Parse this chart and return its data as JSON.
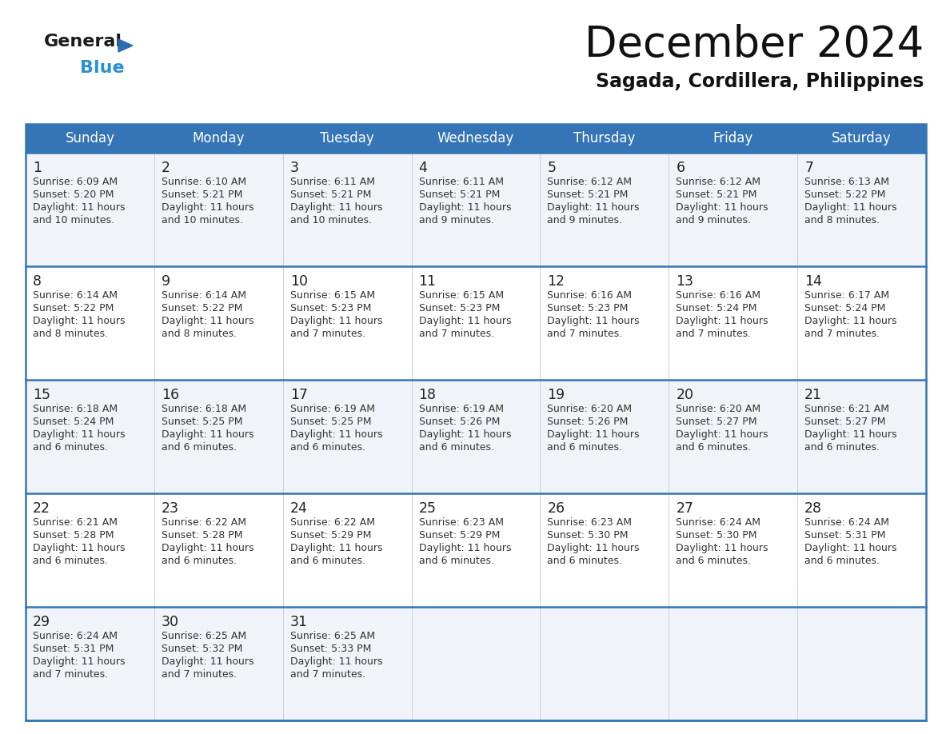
{
  "title": "December 2024",
  "subtitle": "Sagada, Cordillera, Philippines",
  "days_of_week": [
    "Sunday",
    "Monday",
    "Tuesday",
    "Wednesday",
    "Thursday",
    "Friday",
    "Saturday"
  ],
  "header_bg_color": "#3575b5",
  "header_text_color": "#ffffff",
  "row_bg_colors": [
    "#f0f4f8",
    "#ffffff"
  ],
  "row_separator_color": "#3575b5",
  "title_color": "#111111",
  "subtitle_color": "#111111",
  "day_num_color": "#222222",
  "cell_text_color": "#333333",
  "calendar_data": [
    [
      {
        "day": 1,
        "sunrise": "6:09 AM",
        "sunset": "5:20 PM",
        "daylight": "11 hours and 10 minutes."
      },
      {
        "day": 2,
        "sunrise": "6:10 AM",
        "sunset": "5:21 PM",
        "daylight": "11 hours and 10 minutes."
      },
      {
        "day": 3,
        "sunrise": "6:11 AM",
        "sunset": "5:21 PM",
        "daylight": "11 hours and 10 minutes."
      },
      {
        "day": 4,
        "sunrise": "6:11 AM",
        "sunset": "5:21 PM",
        "daylight": "11 hours and 9 minutes."
      },
      {
        "day": 5,
        "sunrise": "6:12 AM",
        "sunset": "5:21 PM",
        "daylight": "11 hours and 9 minutes."
      },
      {
        "day": 6,
        "sunrise": "6:12 AM",
        "sunset": "5:21 PM",
        "daylight": "11 hours and 9 minutes."
      },
      {
        "day": 7,
        "sunrise": "6:13 AM",
        "sunset": "5:22 PM",
        "daylight": "11 hours and 8 minutes."
      }
    ],
    [
      {
        "day": 8,
        "sunrise": "6:14 AM",
        "sunset": "5:22 PM",
        "daylight": "11 hours and 8 minutes."
      },
      {
        "day": 9,
        "sunrise": "6:14 AM",
        "sunset": "5:22 PM",
        "daylight": "11 hours and 8 minutes."
      },
      {
        "day": 10,
        "sunrise": "6:15 AM",
        "sunset": "5:23 PM",
        "daylight": "11 hours and 7 minutes."
      },
      {
        "day": 11,
        "sunrise": "6:15 AM",
        "sunset": "5:23 PM",
        "daylight": "11 hours and 7 minutes."
      },
      {
        "day": 12,
        "sunrise": "6:16 AM",
        "sunset": "5:23 PM",
        "daylight": "11 hours and 7 minutes."
      },
      {
        "day": 13,
        "sunrise": "6:16 AM",
        "sunset": "5:24 PM",
        "daylight": "11 hours and 7 minutes."
      },
      {
        "day": 14,
        "sunrise": "6:17 AM",
        "sunset": "5:24 PM",
        "daylight": "11 hours and 7 minutes."
      }
    ],
    [
      {
        "day": 15,
        "sunrise": "6:18 AM",
        "sunset": "5:24 PM",
        "daylight": "11 hours and 6 minutes."
      },
      {
        "day": 16,
        "sunrise": "6:18 AM",
        "sunset": "5:25 PM",
        "daylight": "11 hours and 6 minutes."
      },
      {
        "day": 17,
        "sunrise": "6:19 AM",
        "sunset": "5:25 PM",
        "daylight": "11 hours and 6 minutes."
      },
      {
        "day": 18,
        "sunrise": "6:19 AM",
        "sunset": "5:26 PM",
        "daylight": "11 hours and 6 minutes."
      },
      {
        "day": 19,
        "sunrise": "6:20 AM",
        "sunset": "5:26 PM",
        "daylight": "11 hours and 6 minutes."
      },
      {
        "day": 20,
        "sunrise": "6:20 AM",
        "sunset": "5:27 PM",
        "daylight": "11 hours and 6 minutes."
      },
      {
        "day": 21,
        "sunrise": "6:21 AM",
        "sunset": "5:27 PM",
        "daylight": "11 hours and 6 minutes."
      }
    ],
    [
      {
        "day": 22,
        "sunrise": "6:21 AM",
        "sunset": "5:28 PM",
        "daylight": "11 hours and 6 minutes."
      },
      {
        "day": 23,
        "sunrise": "6:22 AM",
        "sunset": "5:28 PM",
        "daylight": "11 hours and 6 minutes."
      },
      {
        "day": 24,
        "sunrise": "6:22 AM",
        "sunset": "5:29 PM",
        "daylight": "11 hours and 6 minutes."
      },
      {
        "day": 25,
        "sunrise": "6:23 AM",
        "sunset": "5:29 PM",
        "daylight": "11 hours and 6 minutes."
      },
      {
        "day": 26,
        "sunrise": "6:23 AM",
        "sunset": "5:30 PM",
        "daylight": "11 hours and 6 minutes."
      },
      {
        "day": 27,
        "sunrise": "6:24 AM",
        "sunset": "5:30 PM",
        "daylight": "11 hours and 6 minutes."
      },
      {
        "day": 28,
        "sunrise": "6:24 AM",
        "sunset": "5:31 PM",
        "daylight": "11 hours and 6 minutes."
      }
    ],
    [
      {
        "day": 29,
        "sunrise": "6:24 AM",
        "sunset": "5:31 PM",
        "daylight": "11 hours and 7 minutes."
      },
      {
        "day": 30,
        "sunrise": "6:25 AM",
        "sunset": "5:32 PM",
        "daylight": "11 hours and 7 minutes."
      },
      {
        "day": 31,
        "sunrise": "6:25 AM",
        "sunset": "5:33 PM",
        "daylight": "11 hours and 7 minutes."
      },
      null,
      null,
      null,
      null
    ]
  ],
  "logo_text_general": "General",
  "logo_text_blue": "Blue",
  "logo_triangle_color": "#2b6cb0",
  "logo_blue_color": "#2b8fd4"
}
